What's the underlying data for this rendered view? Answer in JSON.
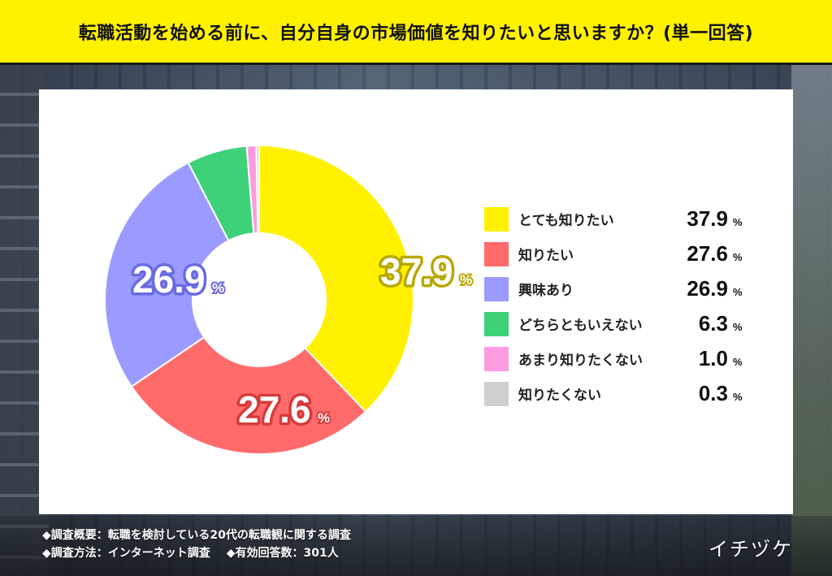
{
  "header": {
    "title": "転職活動を始める前に、自分自身の市場価値を知りたいと思いますか？(単一回答)"
  },
  "chart_data": {
    "type": "pie",
    "donut": true,
    "unit": "%",
    "categories": [
      "とても知りたい",
      "知りたい",
      "興味あり",
      "どちらともいえない",
      "あまり知りたくない",
      "知りたくない"
    ],
    "values": [
      37.9,
      27.6,
      26.9,
      6.3,
      1.0,
      0.3
    ],
    "value_labels": [
      "37.9",
      "27.6",
      "26.9",
      "6.3",
      "1.0",
      "0.3"
    ],
    "colors": [
      "#fff100",
      "#ff6b6b",
      "#9b9bff",
      "#3dd17a",
      "#ff9be0",
      "#cfcfcf"
    ],
    "slice_label_colors": [
      "#b8a800",
      "#d63a3a",
      "#6a6ae0"
    ],
    "legend_position": "right"
  },
  "footer": {
    "overview": "◆調査概要：転職を検討している20代の転職観に関する調査",
    "method": "◆調査方法：インターネット調査",
    "respondents": "◆有効回答数：301人"
  },
  "brand": "イチヅケ"
}
